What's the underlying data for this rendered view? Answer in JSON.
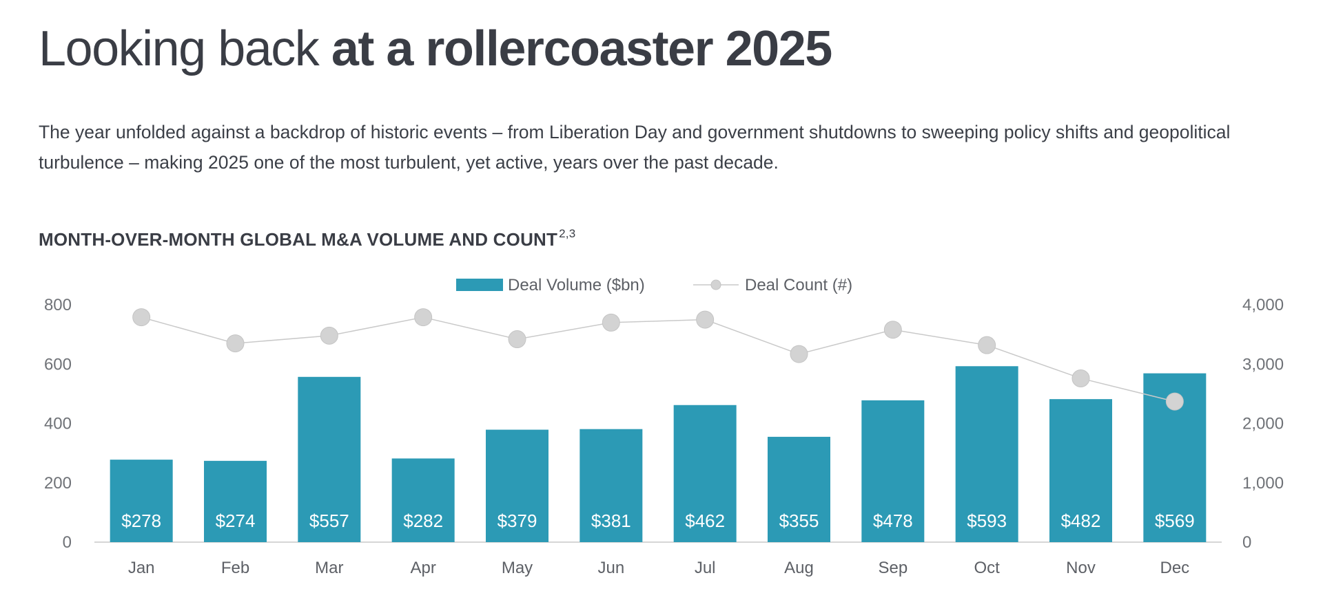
{
  "page": {
    "title_light": "Looking back ",
    "title_bold": "at a rollercoaster 2025",
    "description": "The year unfolded against a backdrop of historic events – from Liberation Day and government shutdowns to sweeping policy shifts and geopolitical turbulence – making 2025 one of the most turbulent, yet active, years over the past decade."
  },
  "chart_data": {
    "type": "bar",
    "title": "MONTH-OVER-MONTH GLOBAL M&A VOLUME AND COUNT",
    "title_superscript": "2,3",
    "categories": [
      "Jan",
      "Feb",
      "Mar",
      "Apr",
      "May",
      "Jun",
      "Jul",
      "Aug",
      "Sep",
      "Oct",
      "Nov",
      "Dec"
    ],
    "series": [
      {
        "name": "Deal Volume ($bn)",
        "type": "bar",
        "axis": "left",
        "color": "#2c9ab5",
        "values": [
          278,
          274,
          557,
          282,
          379,
          381,
          462,
          355,
          478,
          593,
          482,
          569
        ],
        "labels": [
          "$278",
          "$274",
          "$557",
          "$282",
          "$379",
          "$381",
          "$462",
          "$355",
          "$478",
          "$593",
          "$482",
          "$569"
        ]
      },
      {
        "name": "Deal Count (#)",
        "type": "line",
        "axis": "right",
        "color": "#d3d3d3",
        "line_color": "#c9c9c9",
        "values": [
          3790,
          3350,
          3480,
          3790,
          3420,
          3700,
          3750,
          3170,
          3580,
          3320,
          2760,
          2370
        ]
      }
    ],
    "y_left": {
      "min": 0,
      "max": 800,
      "ticks": [
        0,
        200,
        400,
        600,
        800
      ],
      "tick_labels": [
        "0",
        "200",
        "400",
        "600",
        "800"
      ]
    },
    "y_right": {
      "min": 0,
      "max": 4000,
      "ticks": [
        0,
        1000,
        2000,
        3000,
        4000
      ],
      "tick_labels": [
        "0",
        "1,000",
        "2,000",
        "3,000",
        "4,000"
      ]
    },
    "grid": false,
    "legend_position": "top-center"
  }
}
